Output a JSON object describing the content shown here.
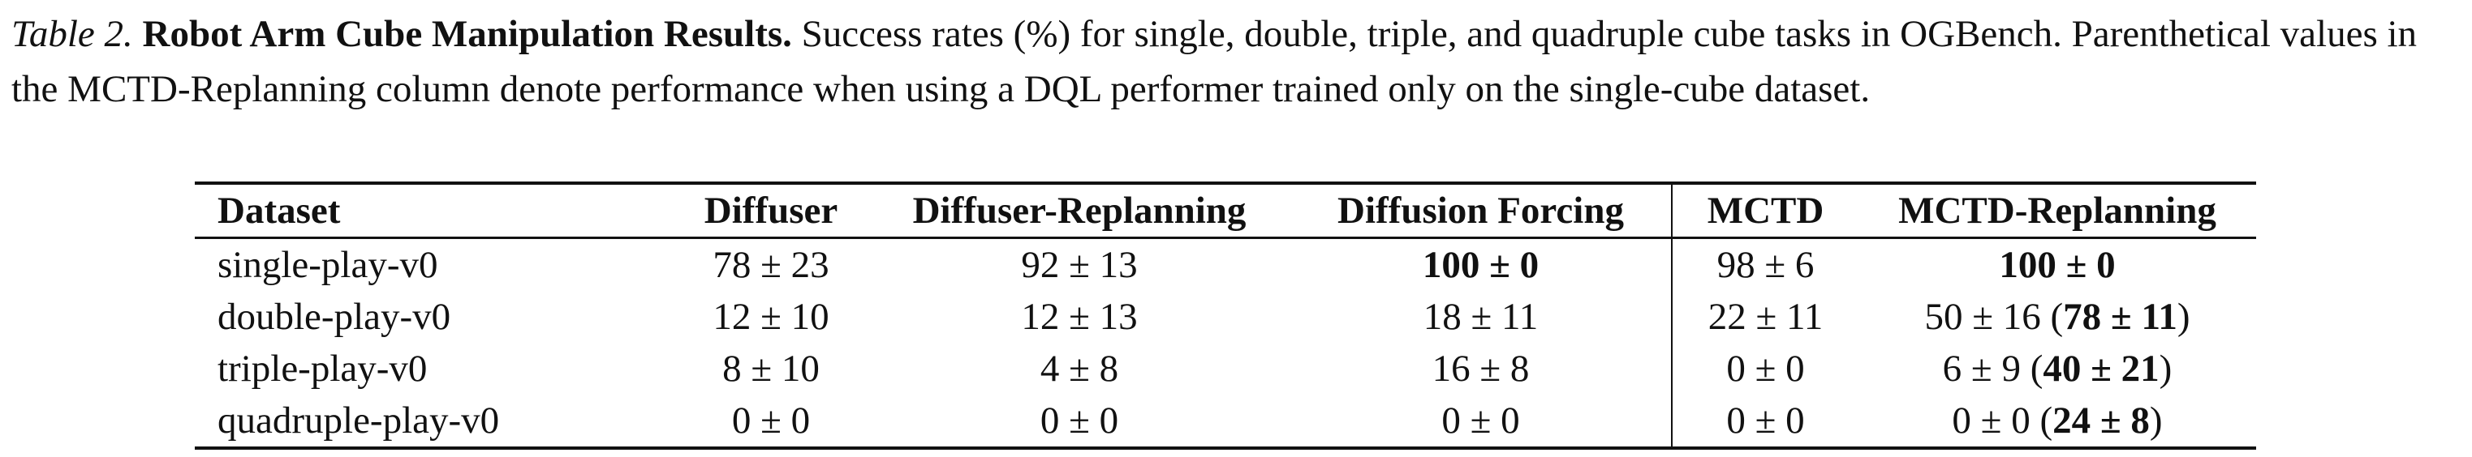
{
  "caption": {
    "label": "Table 2.",
    "title": "Robot Arm Cube Manipulation Results.",
    "text": " Success rates (%) for single, double, triple, and quadruple cube tasks in OGBench. Parenthetical values in the MCTD-Replanning column denote performance when using a DQL performer trained only on the single-cube dataset."
  },
  "table": {
    "headers": [
      "Dataset",
      "Diffuser",
      "Diffuser-Replanning",
      "Diffusion Forcing",
      "MCTD",
      "MCTD-Replanning"
    ],
    "rows": [
      {
        "dataset": "single-play-v0",
        "diffuser": "78 ± 23",
        "diffuser_replanning": "92 ± 13",
        "diffusion_forcing": "100 ± 0",
        "mctd": "98 ± 6",
        "mctd_replanning": "100 ± 0",
        "mctd_replanning_paren": ""
      },
      {
        "dataset": "double-play-v0",
        "diffuser": "12 ± 10",
        "diffuser_replanning": "12 ± 13",
        "diffusion_forcing": "18 ± 11",
        "mctd": "22 ± 11",
        "mctd_replanning": "50 ± 16",
        "mctd_replanning_paren": "78 ± 11"
      },
      {
        "dataset": "triple-play-v0",
        "diffuser": "8 ± 10",
        "diffuser_replanning": "4 ± 8",
        "diffusion_forcing": "16 ± 8",
        "mctd": "0 ± 0",
        "mctd_replanning": "6 ± 9",
        "mctd_replanning_paren": "40 ± 21"
      },
      {
        "dataset": "quadruple-play-v0",
        "diffuser": "0 ± 0",
        "diffuser_replanning": "0 ± 0",
        "diffusion_forcing": "0 ± 0",
        "mctd": "0 ± 0",
        "mctd_replanning": "0 ± 0",
        "mctd_replanning_paren": "24 ± 8"
      }
    ]
  }
}
